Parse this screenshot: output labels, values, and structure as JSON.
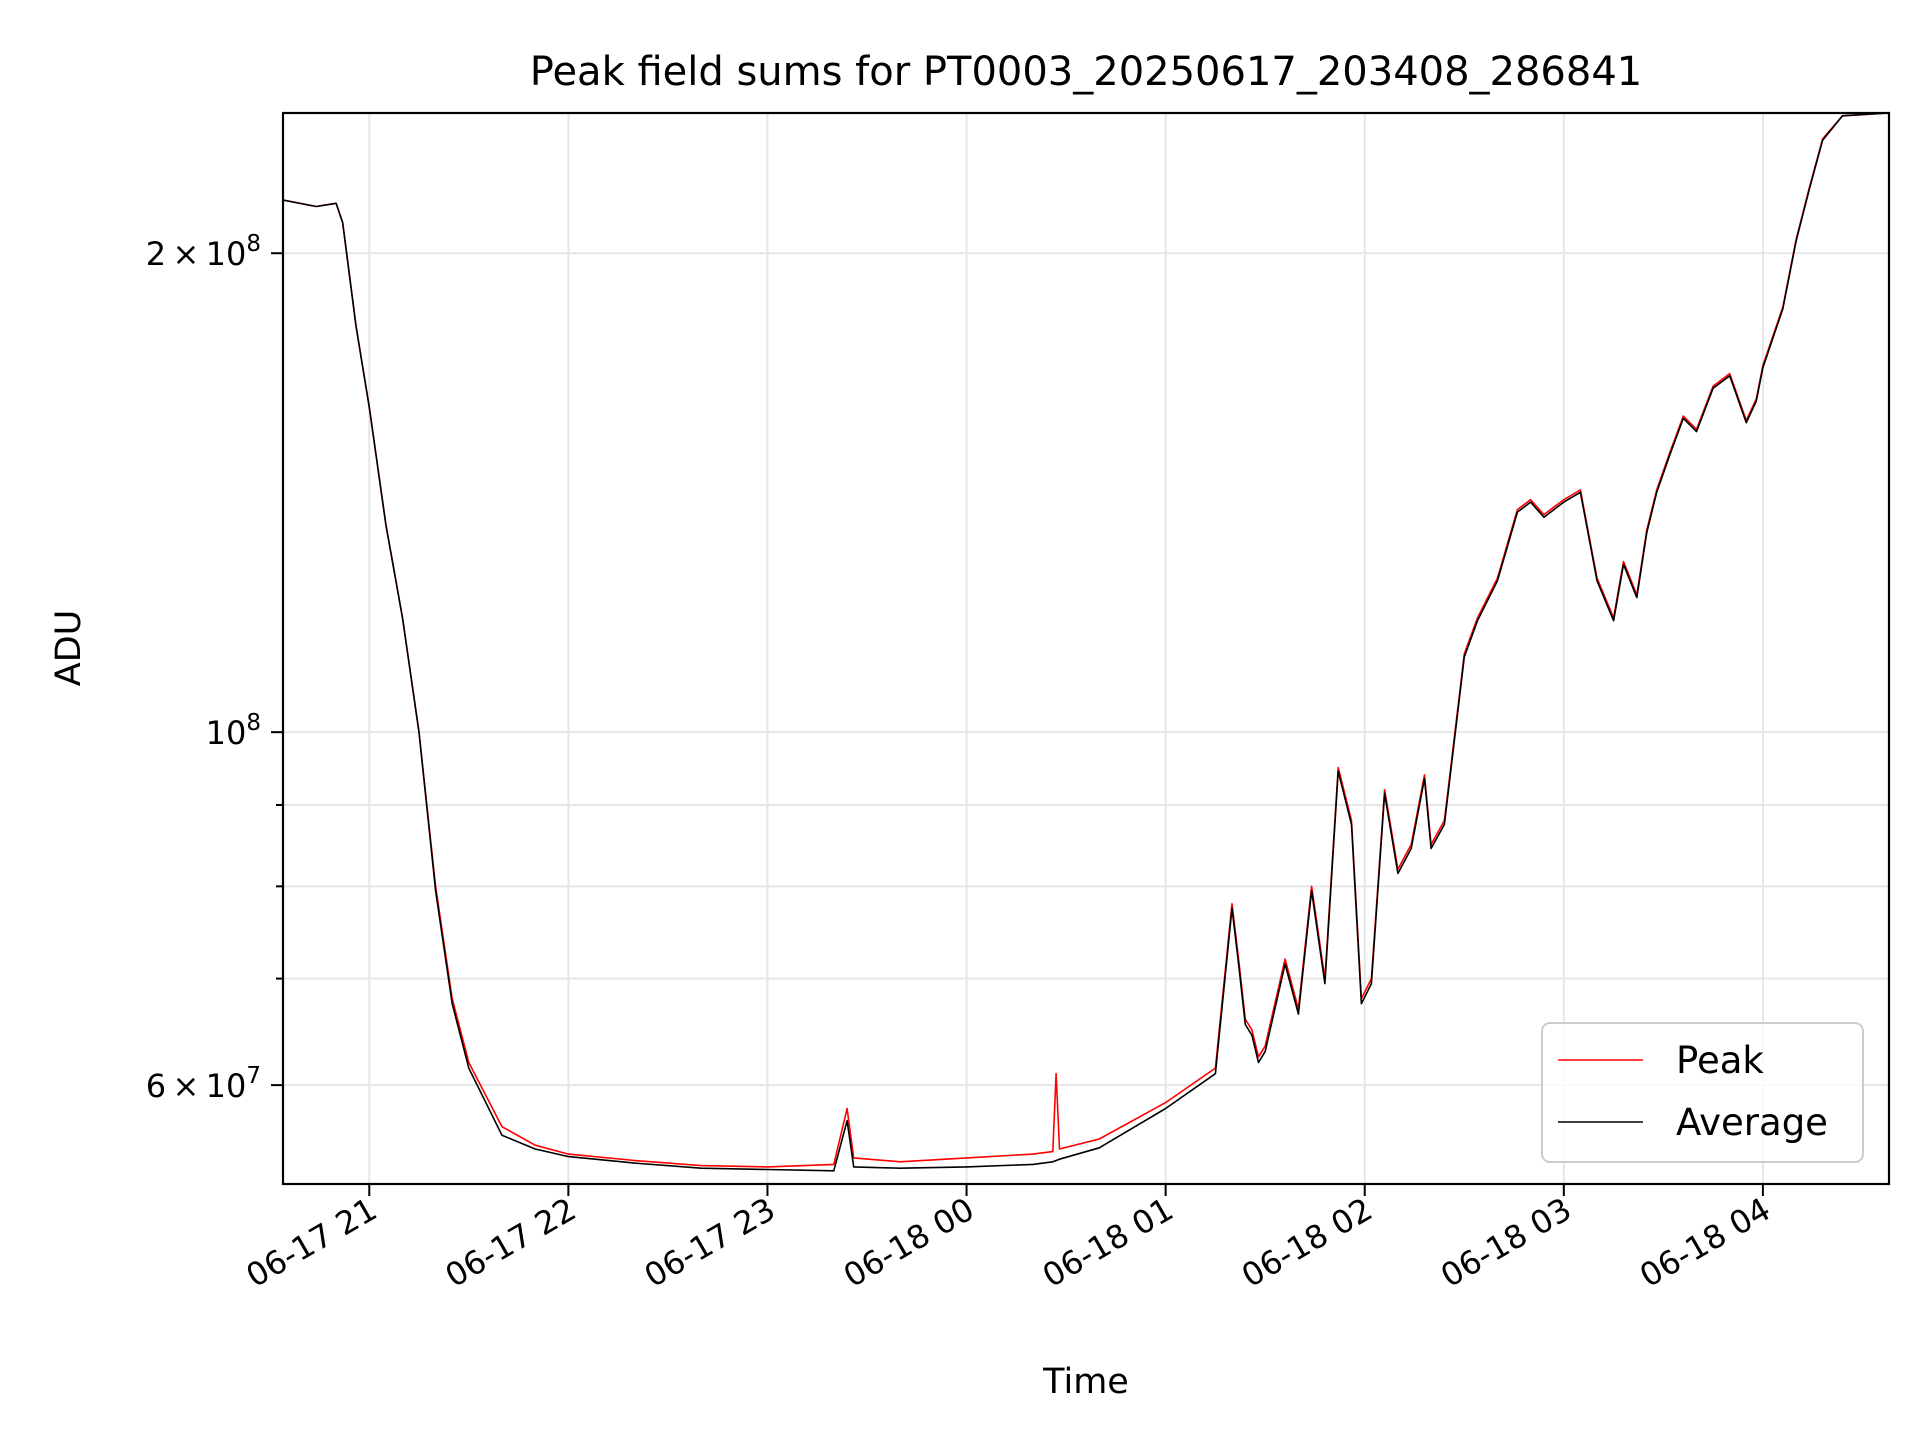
{
  "chart_data": {
    "type": "line",
    "title": "Peak field sums for PT0003_20250617_203408_286841",
    "xlabel": "Time",
    "ylabel": "ADU",
    "yscale": "log",
    "grid": true,
    "legend_position": "lower-right",
    "xlim": [
      "2025-06-17 20:34",
      "2025-06-18 04:38"
    ],
    "ylim": [
      52000000,
      245000000
    ],
    "x_ticks": [
      {
        "t": "2025-06-17 21:00",
        "label": "06-17 21"
      },
      {
        "t": "2025-06-17 22:00",
        "label": "06-17 22"
      },
      {
        "t": "2025-06-17 23:00",
        "label": "06-17 23"
      },
      {
        "t": "2025-06-18 00:00",
        "label": "06-18 00"
      },
      {
        "t": "2025-06-18 01:00",
        "label": "06-18 01"
      },
      {
        "t": "2025-06-18 02:00",
        "label": "06-18 02"
      },
      {
        "t": "2025-06-18 03:00",
        "label": "06-18 03"
      },
      {
        "t": "2025-06-18 04:00",
        "label": "06-18 04"
      }
    ],
    "y_major_ticks": [
      {
        "value": 60000000,
        "mantissa": "6",
        "exponent": "7",
        "times": "×"
      },
      {
        "value": 100000000,
        "mantissa": "",
        "exponent": "8",
        "times": ""
      },
      {
        "value": 200000000,
        "mantissa": "2",
        "exponent": "8",
        "times": "×"
      }
    ],
    "y_minor_ticks": [
      70000000,
      80000000,
      90000000
    ],
    "series": [
      {
        "name": "Peak",
        "color": "#ff0000",
        "x": [
          "2025-06-17 20:34",
          "2025-06-17 20:44",
          "2025-06-17 20:50",
          "2025-06-17 20:52",
          "2025-06-17 20:56",
          "2025-06-17 21:00",
          "2025-06-17 21:05",
          "2025-06-17 21:10",
          "2025-06-17 21:15",
          "2025-06-17 21:20",
          "2025-06-17 21:25",
          "2025-06-17 21:30",
          "2025-06-17 21:40",
          "2025-06-17 21:50",
          "2025-06-17 22:00",
          "2025-06-17 22:20",
          "2025-06-17 22:40",
          "2025-06-17 23:00",
          "2025-06-17 23:20",
          "2025-06-17 23:24",
          "2025-06-17 23:26",
          "2025-06-17 23:40",
          "2025-06-18 00:00",
          "2025-06-18 00:20",
          "2025-06-18 00:26",
          "2025-06-18 00:27",
          "2025-06-18 00:28",
          "2025-06-18 00:40",
          "2025-06-18 01:00",
          "2025-06-18 01:15",
          "2025-06-18 01:20",
          "2025-06-18 01:22",
          "2025-06-18 01:24",
          "2025-06-18 01:26",
          "2025-06-18 01:28",
          "2025-06-18 01:30",
          "2025-06-18 01:36",
          "2025-06-18 01:40",
          "2025-06-18 01:44",
          "2025-06-18 01:48",
          "2025-06-18 01:52",
          "2025-06-18 01:56",
          "2025-06-18 01:59",
          "2025-06-18 02:02",
          "2025-06-18 02:06",
          "2025-06-18 02:10",
          "2025-06-18 02:14",
          "2025-06-18 02:18",
          "2025-06-18 02:20",
          "2025-06-18 02:24",
          "2025-06-18 02:30",
          "2025-06-18 02:34",
          "2025-06-18 02:40",
          "2025-06-18 02:46",
          "2025-06-18 02:50",
          "2025-06-18 02:54",
          "2025-06-18 03:00",
          "2025-06-18 03:05",
          "2025-06-18 03:10",
          "2025-06-18 03:15",
          "2025-06-18 03:18",
          "2025-06-18 03:22",
          "2025-06-18 03:25",
          "2025-06-18 03:28",
          "2025-06-18 03:32",
          "2025-06-18 03:36",
          "2025-06-18 03:40",
          "2025-06-18 03:45",
          "2025-06-18 03:50",
          "2025-06-18 03:55",
          "2025-06-18 03:58",
          "2025-06-18 04:00",
          "2025-06-18 04:06",
          "2025-06-18 04:10",
          "2025-06-18 04:14",
          "2025-06-18 04:18",
          "2025-06-18 04:24",
          "2025-06-18 04:38"
        ],
        "y": [
          216000000,
          214000000,
          215000000,
          209000000,
          180000000,
          160000000,
          135000000,
          118000000,
          100000000,
          80000000,
          68000000,
          62000000,
          56500000,
          55000000,
          54300000,
          53800000,
          53400000,
          53300000,
          53500000,
          58000000,
          54000000,
          53700000,
          54000000,
          54300000,
          54500000,
          61000000,
          54700000,
          55500000,
          58500000,
          61500000,
          78000000,
          72000000,
          66000000,
          65000000,
          62500000,
          63500000,
          72000000,
          67000000,
          80000000,
          70000000,
          95000000,
          88000000,
          68000000,
          70000000,
          92000000,
          82000000,
          85000000,
          94000000,
          85000000,
          88000000,
          112000000,
          118000000,
          125000000,
          138000000,
          140000000,
          137000000,
          140000000,
          142000000,
          125000000,
          118000000,
          128000000,
          122000000,
          134000000,
          142000000,
          150000000,
          158000000,
          155000000,
          165000000,
          168000000,
          157000000,
          162000000,
          170000000,
          185000000,
          204000000,
          220000000,
          236000000,
          244000000,
          245000000
        ]
      },
      {
        "name": "Average",
        "color": "#000000",
        "x": [
          "2025-06-17 20:34",
          "2025-06-17 20:44",
          "2025-06-17 20:50",
          "2025-06-17 20:52",
          "2025-06-17 20:56",
          "2025-06-17 21:00",
          "2025-06-17 21:05",
          "2025-06-17 21:10",
          "2025-06-17 21:15",
          "2025-06-17 21:20",
          "2025-06-17 21:25",
          "2025-06-17 21:30",
          "2025-06-17 21:40",
          "2025-06-17 21:50",
          "2025-06-17 22:00",
          "2025-06-17 22:20",
          "2025-06-17 22:40",
          "2025-06-17 23:00",
          "2025-06-17 23:20",
          "2025-06-17 23:24",
          "2025-06-17 23:26",
          "2025-06-17 23:40",
          "2025-06-18 00:00",
          "2025-06-18 00:20",
          "2025-06-18 00:26",
          "2025-06-18 00:27",
          "2025-06-18 00:28",
          "2025-06-18 00:40",
          "2025-06-18 01:00",
          "2025-06-18 01:15",
          "2025-06-18 01:20",
          "2025-06-18 01:22",
          "2025-06-18 01:24",
          "2025-06-18 01:26",
          "2025-06-18 01:28",
          "2025-06-18 01:30",
          "2025-06-18 01:36",
          "2025-06-18 01:40",
          "2025-06-18 01:44",
          "2025-06-18 01:48",
          "2025-06-18 01:52",
          "2025-06-18 01:56",
          "2025-06-18 01:59",
          "2025-06-18 02:02",
          "2025-06-18 02:06",
          "2025-06-18 02:10",
          "2025-06-18 02:14",
          "2025-06-18 02:18",
          "2025-06-18 02:20",
          "2025-06-18 02:24",
          "2025-06-18 02:30",
          "2025-06-18 02:34",
          "2025-06-18 02:40",
          "2025-06-18 02:46",
          "2025-06-18 02:50",
          "2025-06-18 02:54",
          "2025-06-18 03:00",
          "2025-06-18 03:05",
          "2025-06-18 03:10",
          "2025-06-18 03:15",
          "2025-06-18 03:18",
          "2025-06-18 03:22",
          "2025-06-18 03:25",
          "2025-06-18 03:28",
          "2025-06-18 03:32",
          "2025-06-18 03:36",
          "2025-06-18 03:40",
          "2025-06-18 03:45",
          "2025-06-18 03:50",
          "2025-06-18 03:55",
          "2025-06-18 03:58",
          "2025-06-18 04:00",
          "2025-06-18 04:06",
          "2025-06-18 04:10",
          "2025-06-18 04:14",
          "2025-06-18 04:18",
          "2025-06-18 04:24",
          "2025-06-18 04:38"
        ],
        "y": [
          216000000,
          214000000,
          215000000,
          209000000,
          180000000,
          160000000,
          135000000,
          118000000,
          100000000,
          79500000,
          67500000,
          61500000,
          55800000,
          54700000,
          54100000,
          53600000,
          53200000,
          53100000,
          53000000,
          57000000,
          53300000,
          53200000,
          53300000,
          53500000,
          53700000,
          53800000,
          53900000,
          54800000,
          58000000,
          61000000,
          77500000,
          71500000,
          65500000,
          64500000,
          62000000,
          63000000,
          71500000,
          66500000,
          79500000,
          69500000,
          94500000,
          87500000,
          67500000,
          69500000,
          91500000,
          81500000,
          84500000,
          93500000,
          84500000,
          87500000,
          111500000,
          117500000,
          124500000,
          137500000,
          139500000,
          136500000,
          139500000,
          141500000,
          124500000,
          117500000,
          127500000,
          121500000,
          133500000,
          141500000,
          149500000,
          157500000,
          154500000,
          164500000,
          167500000,
          156500000,
          161500000,
          169500000,
          184500000,
          203500000,
          219500000,
          235500000,
          244000000,
          245000000
        ]
      }
    ]
  }
}
